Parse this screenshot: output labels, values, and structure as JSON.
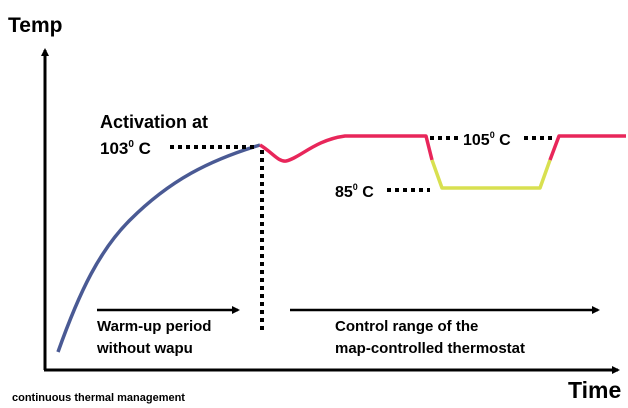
{
  "axes": {
    "y_label": "Temp",
    "x_label": "Time"
  },
  "activation": {
    "text": "Activation at",
    "number": "103",
    "sup": "0",
    "unit": " C"
  },
  "upper": {
    "number": "105",
    "sup": "0",
    "unit": " C"
  },
  "lower": {
    "number": "85",
    "sup": "0",
    "unit": " C"
  },
  "phases": [
    {
      "line1": "Warm-up period",
      "line2": "without wapu"
    },
    {
      "line1": "Control range of the",
      "line2": "map-controlled thermostat"
    }
  ],
  "caption": "continuous thermal management"
}
